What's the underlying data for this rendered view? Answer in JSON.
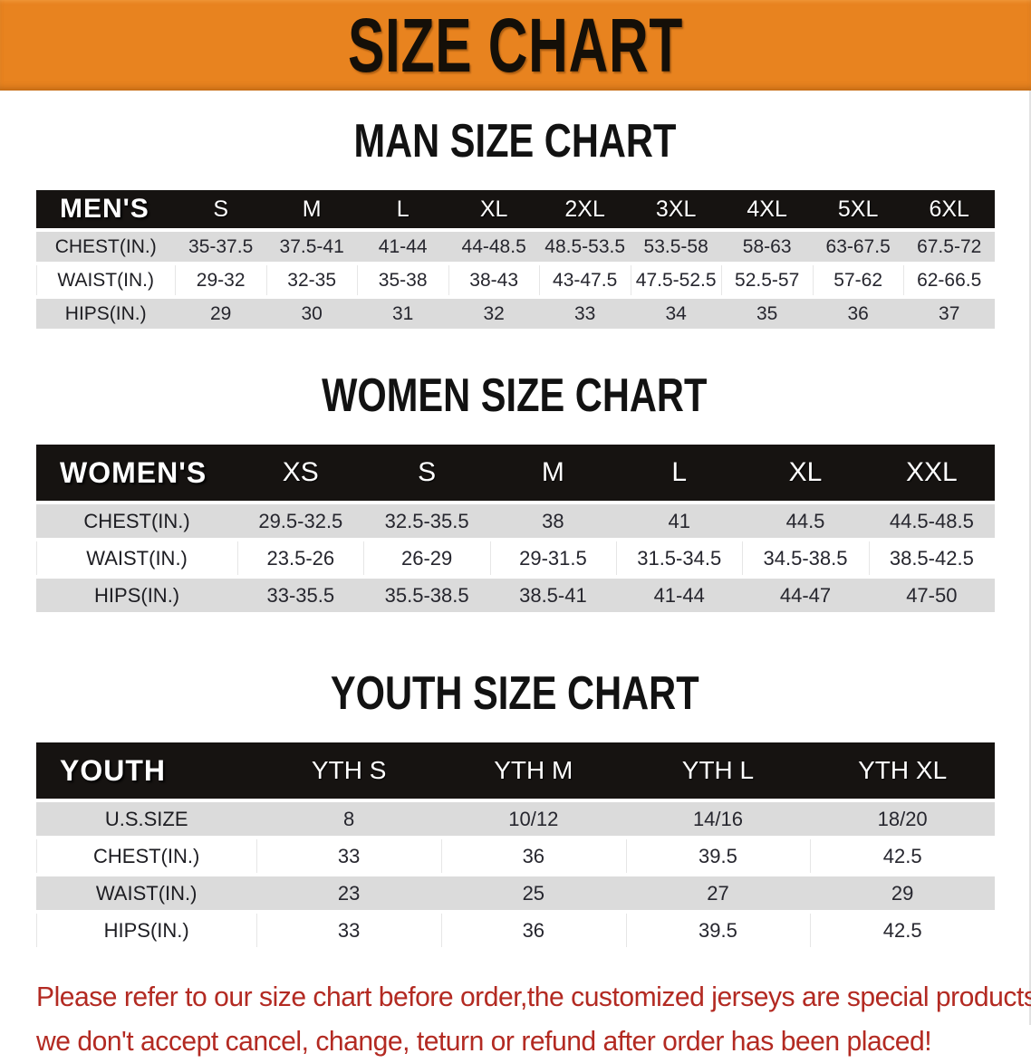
{
  "banner": {
    "title": "SIZE CHART",
    "bg_color": "#e8831f",
    "text_color": "#140f08"
  },
  "sections": [
    {
      "id": "men",
      "title": "MAN SIZE CHART",
      "header_label": "MEN'S",
      "columns": [
        "S",
        "M",
        "L",
        "XL",
        "2XL",
        "3XL",
        "4XL",
        "5XL",
        "6XL"
      ],
      "rows": [
        {
          "label": "CHEST(IN.)",
          "values": [
            "35-37.5",
            "37.5-41",
            "41-44",
            "44-48.5",
            "48.5-53.5",
            "53.5-58",
            "58-63",
            "63-67.5",
            "67.5-72"
          ]
        },
        {
          "label": "WAIST(IN.)",
          "values": [
            "29-32",
            "32-35",
            "35-38",
            "38-43",
            "43-47.5",
            "47.5-52.5",
            "52.5-57",
            "57-62",
            "62-66.5"
          ]
        },
        {
          "label": "HIPS(IN.)",
          "values": [
            "29",
            "30",
            "31",
            "32",
            "33",
            "34",
            "35",
            "36",
            "37"
          ]
        }
      ]
    },
    {
      "id": "women",
      "title": "WOMEN SIZE CHART",
      "header_label": "WOMEN'S",
      "columns": [
        "XS",
        "S",
        "M",
        "L",
        "XL",
        "XXL"
      ],
      "rows": [
        {
          "label": "CHEST(IN.)",
          "values": [
            "29.5-32.5",
            "32.5-35.5",
            "38",
            "41",
            "44.5",
            "44.5-48.5"
          ]
        },
        {
          "label": "WAIST(IN.)",
          "values": [
            "23.5-26",
            "26-29",
            "29-31.5",
            "31.5-34.5",
            "34.5-38.5",
            "38.5-42.5"
          ]
        },
        {
          "label": "HIPS(IN.)",
          "values": [
            "33-35.5",
            "35.5-38.5",
            "38.5-41",
            "41-44",
            "44-47",
            "47-50"
          ]
        }
      ]
    },
    {
      "id": "youth",
      "title": "YOUTH SIZE CHART",
      "header_label": "YOUTH",
      "columns": [
        "YTH S",
        "YTH M",
        "YTH L",
        "YTH XL"
      ],
      "rows": [
        {
          "label": "U.S.SIZE",
          "values": [
            "8",
            "10/12",
            "14/16",
            "18/20"
          ]
        },
        {
          "label": "CHEST(IN.)",
          "values": [
            "33",
            "36",
            "39.5",
            "42.5"
          ]
        },
        {
          "label": "WAIST(IN.)",
          "values": [
            "23",
            "25",
            "27",
            "29"
          ]
        },
        {
          "label": "HIPS(IN.)",
          "values": [
            "33",
            "36",
            "39.5",
            "42.5"
          ]
        }
      ]
    }
  ],
  "disclaimer": {
    "line1": "Please refer to our size chart before order,the customized jerseys are special products,",
    "line2": "we don't accept cancel, change, teturn or refund after order has been placed!",
    "color": "#b32a22"
  }
}
